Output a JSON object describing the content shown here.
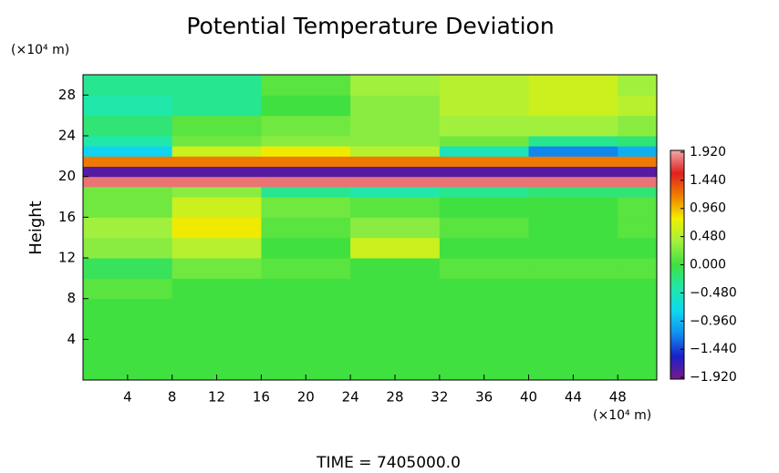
{
  "chart_data": {
    "type": "heatmap",
    "title": "Potential Temperature Deviation",
    "ylabel": "Height",
    "y_unit": "(×10⁴ m)",
    "x_unit": "(×10⁴ m)",
    "footer": "TIME = 7405000.0",
    "xlim": [
      0,
      51.5
    ],
    "ylim": [
      0,
      30
    ],
    "xticks": [
      4,
      8,
      12,
      16,
      20,
      24,
      28,
      32,
      36,
      40,
      44,
      48
    ],
    "yticks": [
      4,
      8,
      12,
      16,
      20,
      24,
      28
    ],
    "xbins": [
      0,
      8,
      16,
      24,
      32,
      40,
      48,
      51.5
    ],
    "ybins": [
      0,
      2,
      4,
      6,
      8,
      10,
      12,
      14,
      16,
      18,
      19,
      20,
      21,
      22,
      23,
      24,
      26,
      28,
      30
    ],
    "z": [
      [
        0,
        0,
        0,
        0,
        0,
        0,
        0
      ],
      [
        0,
        0,
        0,
        0,
        0,
        0,
        0
      ],
      [
        0,
        0,
        0,
        0,
        0,
        0,
        0
      ],
      [
        0,
        0,
        0,
        0,
        0,
        0,
        0
      ],
      [
        0.1,
        0,
        0,
        0,
        0,
        0,
        0
      ],
      [
        -0.1,
        0.2,
        0.1,
        0,
        0.1,
        0.1,
        0.1
      ],
      [
        0.3,
        0.5,
        0,
        0.6,
        0,
        0,
        0
      ],
      [
        0.4,
        0.8,
        0.1,
        0.3,
        0.1,
        0,
        0.1
      ],
      [
        0.2,
        0.6,
        0.2,
        0.1,
        0,
        0,
        0.1
      ],
      [
        0.2,
        0.3,
        -0.3,
        -0.4,
        -0.3,
        -0.2,
        -0.2
      ],
      [
        1.8,
        1.8,
        1.8,
        1.8,
        1.8,
        1.8,
        1.8
      ],
      [
        -1.8,
        -1.8,
        -1.8,
        -1.8,
        -1.8,
        -1.8,
        -1.8
      ],
      [
        1.2,
        1.2,
        1.2,
        1.2,
        1.2,
        1.2,
        1.2
      ],
      [
        -0.8,
        0.6,
        0.8,
        0.5,
        -0.5,
        -1.2,
        -1.0
      ],
      [
        -0.4,
        0.2,
        0.3,
        0.3,
        0.2,
        -0.3,
        -0.2
      ],
      [
        -0.2,
        0.1,
        0.2,
        0.3,
        0.4,
        0.4,
        0.3
      ],
      [
        -0.4,
        -0.3,
        0,
        0.3,
        0.5,
        0.6,
        0.5
      ],
      [
        -0.3,
        -0.3,
        0.1,
        0.4,
        0.5,
        0.6,
        0.4
      ]
    ],
    "zlim": [
      -1.95,
      1.95
    ],
    "colors": [
      "#7a1a8a",
      "#1a20c8",
      "#1090f0",
      "#10d8f0",
      "#20e8a8",
      "#40e040",
      "#a0f040",
      "#f0f000",
      "#f08000",
      "#e02020",
      "#f0a8a8"
    ],
    "colorbar_ticks": [
      {
        "value": 1.92,
        "label": "1.920"
      },
      {
        "value": 1.44,
        "label": "1.440"
      },
      {
        "value": 0.96,
        "label": "0.960"
      },
      {
        "value": 0.48,
        "label": "0.480"
      },
      {
        "value": 0,
        "label": "0.000"
      },
      {
        "value": -0.48,
        "label": "−0.480"
      },
      {
        "value": -0.96,
        "label": "−0.960"
      },
      {
        "value": -1.44,
        "label": "−1.440"
      },
      {
        "value": -1.92,
        "label": "−1.920"
      }
    ]
  }
}
